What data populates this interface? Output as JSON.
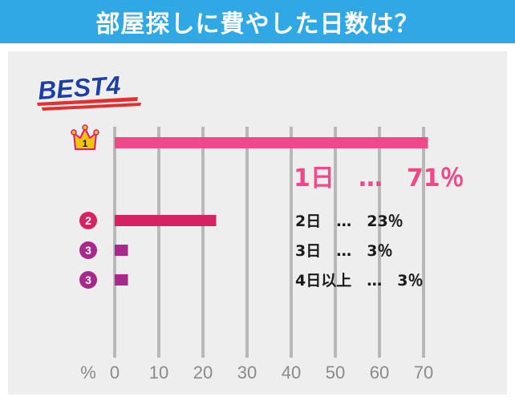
{
  "header": {
    "title": "部屋探しに費やした日数は？"
  },
  "badge": {
    "text": "BEST4"
  },
  "colors": {
    "header_bg": "#31a8e6",
    "panel_bg": "#eeeeee",
    "rank1": "#f0498a",
    "rank2": "#d42262",
    "rank3": "#a8288c",
    "badge_text": "#1d3fa6",
    "grid": "#b8b8b8",
    "tick_text": "#8a8a8a"
  },
  "chart_data": {
    "type": "bar",
    "orientation": "horizontal",
    "xlim": [
      0,
      70
    ],
    "x_ticks": [
      "0",
      "10",
      "20",
      "30",
      "40",
      "50",
      "60",
      "70"
    ],
    "x_unit": "%",
    "categories": [
      "1日",
      "2日",
      "3日",
      "4日以上"
    ],
    "values": [
      71,
      23,
      3,
      3
    ],
    "ranks": [
      "1",
      "2",
      "3",
      "3"
    ],
    "rank_icons": [
      "crown-icon",
      "circle-badge-icon",
      "circle-badge-icon",
      "circle-badge-icon"
    ],
    "data_labels": [
      "1日　…　71％",
      "2日　…　23％",
      "3日　…　3％",
      "4日以上　…　3％"
    ]
  }
}
